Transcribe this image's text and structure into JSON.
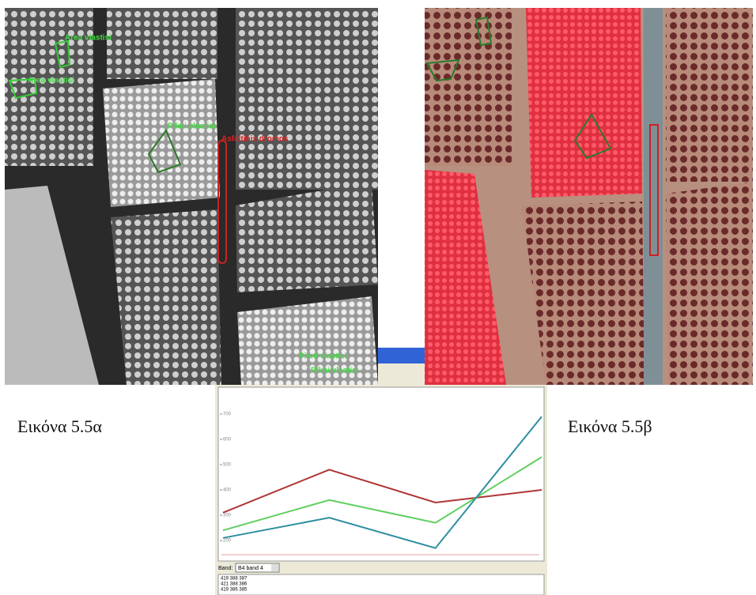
{
  "figure_a": {
    "caption": "Εικόνα 5.5α",
    "labels": [
      "Area vlastisi",
      "Area vlastisi",
      "Pikni vlastisi",
      "Asfaltinis dromos",
      "Pikni vlastisi",
      "Pikni vlastisi"
    ]
  },
  "figure_b": {
    "caption": "Εικόνα 5.5β"
  },
  "chart_data": {
    "type": "line",
    "categories": [
      null,
      null,
      null,
      null
    ],
    "series": [
      {
        "color": "#b03535",
        "values": [
          310,
          480,
          350,
          400
        ]
      },
      {
        "color": "#5fcf5f",
        "values": [
          240,
          360,
          270,
          530
        ]
      },
      {
        "color": "#2f8f9f",
        "values": [
          210,
          290,
          170,
          690
        ]
      }
    ],
    "ylim": [
      150,
      800
    ],
    "yticks": [
      200,
      300,
      400,
      500,
      600,
      700
    ]
  },
  "band_selector": {
    "label": "Band:",
    "value": "B4 band 4"
  },
  "pixel_values": [
    "419 388 387",
    "421 388 386",
    "419 386 385"
  ]
}
